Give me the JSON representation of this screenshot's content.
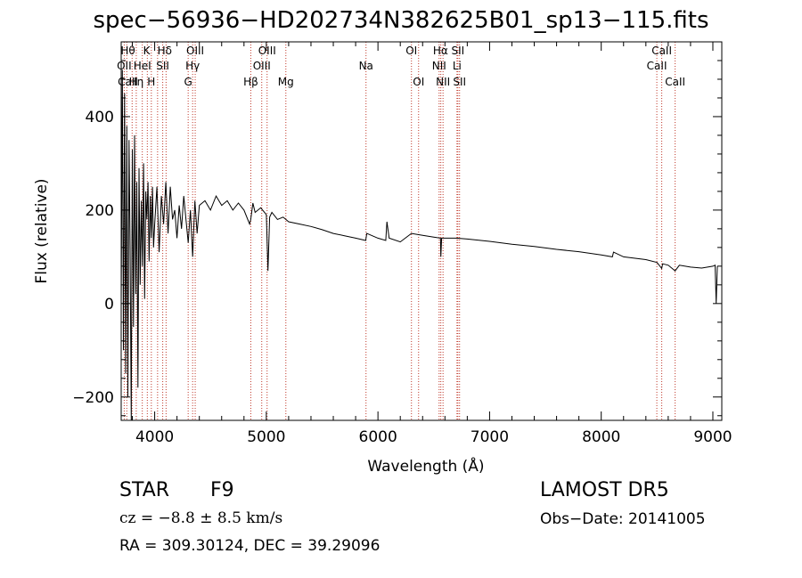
{
  "chart_data": {
    "type": "line",
    "title": "spec−56936−HD202734N382625B01_sp13−115.fits",
    "xlabel": "Wavelength (Å)",
    "ylabel": "Flux (relative)",
    "xlim": [
      3700,
      9080
    ],
    "ylim": [
      -250,
      560
    ],
    "xticks": [
      4000,
      5000,
      6000,
      7000,
      8000,
      9000
    ],
    "xticklabels": [
      "4000",
      "5000",
      "6000",
      "7000",
      "8000",
      "9000"
    ],
    "yticks": [
      -200,
      0,
      200,
      400
    ],
    "yticklabels": [
      "−200",
      "0",
      "200",
      "400"
    ],
    "grid": false,
    "series": [
      {
        "x": [
          3700,
          3710,
          3720,
          3730,
          3740,
          3750,
          3760,
          3770,
          3780,
          3790,
          3800,
          3810,
          3820,
          3830,
          3840,
          3850,
          3860,
          3870,
          3880,
          3890,
          3900,
          3910,
          3920,
          3930,
          3940,
          3950,
          3960,
          3970,
          3980,
          3990,
          4000,
          4020,
          4040,
          4060,
          4080,
          4100,
          4120,
          4140,
          4160,
          4180,
          4200,
          4220,
          4240,
          4260,
          4280,
          4300,
          4320,
          4340,
          4360,
          4380,
          4400,
          4450,
          4500,
          4550,
          4600,
          4650,
          4700,
          4750,
          4800,
          4850,
          4861,
          4880,
          4900,
          4950,
          5000,
          5015,
          5030,
          5050,
          5100,
          5150,
          5200,
          5300,
          5400,
          5500,
          5600,
          5700,
          5800,
          5890,
          5900,
          6000,
          6070,
          6080,
          6100,
          6200,
          6300,
          6400,
          6500,
          6560,
          6563,
          6570,
          6600,
          6700,
          6800,
          7000,
          7200,
          7400,
          7600,
          7800,
          8000,
          8100,
          8110,
          8200,
          8400,
          8500,
          8542,
          8550,
          8600,
          8662,
          8700,
          8800,
          8900,
          9000,
          9020,
          9030,
          9040
        ],
        "values": [
          0,
          500,
          -100,
          450,
          -150,
          380,
          -200,
          350,
          120,
          -250,
          330,
          -50,
          360,
          20,
          260,
          -180,
          290,
          40,
          220,
          80,
          300,
          10,
          240,
          180,
          260,
          90,
          230,
          140,
          250,
          120,
          170,
          250,
          110,
          230,
          170,
          260,
          150,
          250,
          180,
          200,
          140,
          210,
          160,
          230,
          180,
          130,
          200,
          100,
          220,
          150,
          210,
          220,
          200,
          230,
          210,
          220,
          200,
          215,
          200,
          170,
          180,
          215,
          195,
          205,
          190,
          70,
          185,
          195,
          180,
          185,
          175,
          170,
          165,
          158,
          150,
          145,
          140,
          135,
          150,
          140,
          135,
          175,
          140,
          132,
          150,
          146,
          142,
          140,
          100,
          140,
          140,
          140,
          138,
          133,
          127,
          122,
          116,
          111,
          104,
          100,
          110,
          100,
          94,
          88,
          75,
          85,
          82,
          70,
          82,
          78,
          76,
          80,
          82,
          0,
          80
        ]
      }
    ],
    "lines": {
      "pos": [
        3727,
        3750,
        3798,
        3835,
        3889,
        3934,
        3970,
        4026,
        4072,
        4102,
        4300,
        4340,
        4363,
        4861,
        4959,
        5007,
        5175,
        5893,
        6300,
        6364,
        6548,
        6563,
        6583,
        6708,
        6716,
        6731,
        8498,
        8542,
        8662
      ],
      "labels": [
        {
          "text": "Hθ",
          "x": 3760,
          "row": 1
        },
        {
          "text": "K",
          "x": 3928,
          "row": 1
        },
        {
          "text": "Hδ",
          "x": 4090,
          "row": 1
        },
        {
          "text": "OIII",
          "x": 4363,
          "row": 1
        },
        {
          "text": "OIII",
          "x": 5007,
          "row": 1
        },
        {
          "text": "OI",
          "x": 6300,
          "row": 1
        },
        {
          "text": "Hα",
          "x": 6560,
          "row": 1
        },
        {
          "text": "SII",
          "x": 6716,
          "row": 1
        },
        {
          "text": "CaII",
          "x": 8542,
          "row": 1
        },
        {
          "text": "OII",
          "x": 3727,
          "row": 2
        },
        {
          "text": "HeI",
          "x": 3889,
          "row": 2
        },
        {
          "text": "SII",
          "x": 4072,
          "row": 2
        },
        {
          "text": "Hγ",
          "x": 4340,
          "row": 2
        },
        {
          "text": "OIII",
          "x": 4959,
          "row": 2
        },
        {
          "text": "Na",
          "x": 5893,
          "row": 2
        },
        {
          "text": "NII",
          "x": 6548,
          "row": 2
        },
        {
          "text": "Li",
          "x": 6708,
          "row": 2
        },
        {
          "text": "CaII",
          "x": 8498,
          "row": 2
        },
        {
          "text": "CaII",
          "x": 3760,
          "row": 3
        },
        {
          "text": "Hη",
          "x": 3835,
          "row": 3
        },
        {
          "text": "H",
          "x": 3970,
          "row": 3
        },
        {
          "text": "G",
          "x": 4300,
          "row": 3
        },
        {
          "text": "Hβ",
          "x": 4861,
          "row": 3
        },
        {
          "text": "Mg",
          "x": 5175,
          "row": 3
        },
        {
          "text": "OI",
          "x": 6364,
          "row": 3
        },
        {
          "text": "NII",
          "x": 6583,
          "row": 3
        },
        {
          "text": "SII",
          "x": 6731,
          "row": 3
        },
        {
          "text": "CaII",
          "x": 8662,
          "row": 3
        }
      ]
    }
  },
  "info": {
    "object_type": "STAR",
    "subclass": "F9",
    "survey": "LAMOST DR5",
    "redshift": "cz = −8.8 ± 8.5 km/s",
    "obs_date": "Obs−Date: 20141005",
    "coords": "RA = 309.30124, DEC =  39.29096"
  },
  "colors": {
    "line_markers": "#c0392b",
    "spectrum": "#000000",
    "axes": "#000000"
  }
}
